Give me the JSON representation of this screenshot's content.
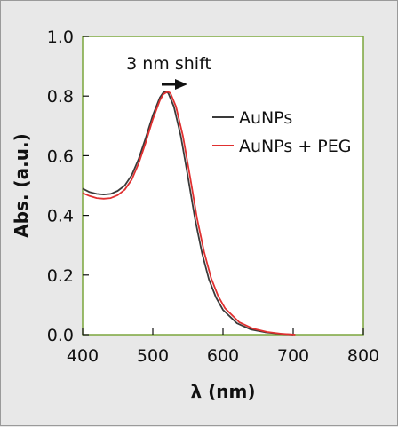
{
  "chart_data": {
    "type": "line",
    "xlabel": "λ (nm)",
    "ylabel": "Abs. (a.u.)",
    "xlim": [
      400,
      800
    ],
    "ylim": [
      0.0,
      1.0
    ],
    "xticks": [
      400,
      500,
      600,
      700,
      800
    ],
    "yticks": [
      "0.0",
      "0.2",
      "0.4",
      "0.6",
      "0.8",
      "1.0"
    ],
    "grid": false,
    "legend_position": "right",
    "annotation": {
      "text": "3 nm shift",
      "arrow": "right"
    },
    "series": [
      {
        "name": "AuNPs",
        "color": "#3a3a3a",
        "points": [
          [
            400,
            0.49
          ],
          [
            410,
            0.478
          ],
          [
            420,
            0.472
          ],
          [
            430,
            0.47
          ],
          [
            440,
            0.472
          ],
          [
            450,
            0.482
          ],
          [
            460,
            0.5
          ],
          [
            470,
            0.535
          ],
          [
            480,
            0.59
          ],
          [
            490,
            0.66
          ],
          [
            500,
            0.735
          ],
          [
            510,
            0.795
          ],
          [
            515,
            0.812
          ],
          [
            518,
            0.815
          ],
          [
            522,
            0.81
          ],
          [
            530,
            0.765
          ],
          [
            540,
            0.665
          ],
          [
            550,
            0.53
          ],
          [
            560,
            0.39
          ],
          [
            570,
            0.275
          ],
          [
            580,
            0.185
          ],
          [
            590,
            0.125
          ],
          [
            600,
            0.083
          ],
          [
            620,
            0.038
          ],
          [
            640,
            0.017
          ],
          [
            660,
            0.008
          ],
          [
            680,
            0.003
          ],
          [
            700,
            0.0
          ]
        ]
      },
      {
        "name": "AuNPs + PEG",
        "color": "#e03030",
        "points": [
          [
            400,
            0.475
          ],
          [
            410,
            0.465
          ],
          [
            420,
            0.458
          ],
          [
            430,
            0.456
          ],
          [
            440,
            0.458
          ],
          [
            450,
            0.468
          ],
          [
            460,
            0.486
          ],
          [
            470,
            0.52
          ],
          [
            480,
            0.575
          ],
          [
            490,
            0.645
          ],
          [
            500,
            0.722
          ],
          [
            510,
            0.785
          ],
          [
            515,
            0.806
          ],
          [
            521,
            0.815
          ],
          [
            525,
            0.81
          ],
          [
            533,
            0.765
          ],
          [
            543,
            0.665
          ],
          [
            553,
            0.53
          ],
          [
            563,
            0.39
          ],
          [
            573,
            0.278
          ],
          [
            583,
            0.19
          ],
          [
            593,
            0.13
          ],
          [
            603,
            0.088
          ],
          [
            623,
            0.042
          ],
          [
            643,
            0.02
          ],
          [
            663,
            0.009
          ],
          [
            683,
            0.003
          ],
          [
            703,
            0.0
          ]
        ]
      }
    ]
  }
}
